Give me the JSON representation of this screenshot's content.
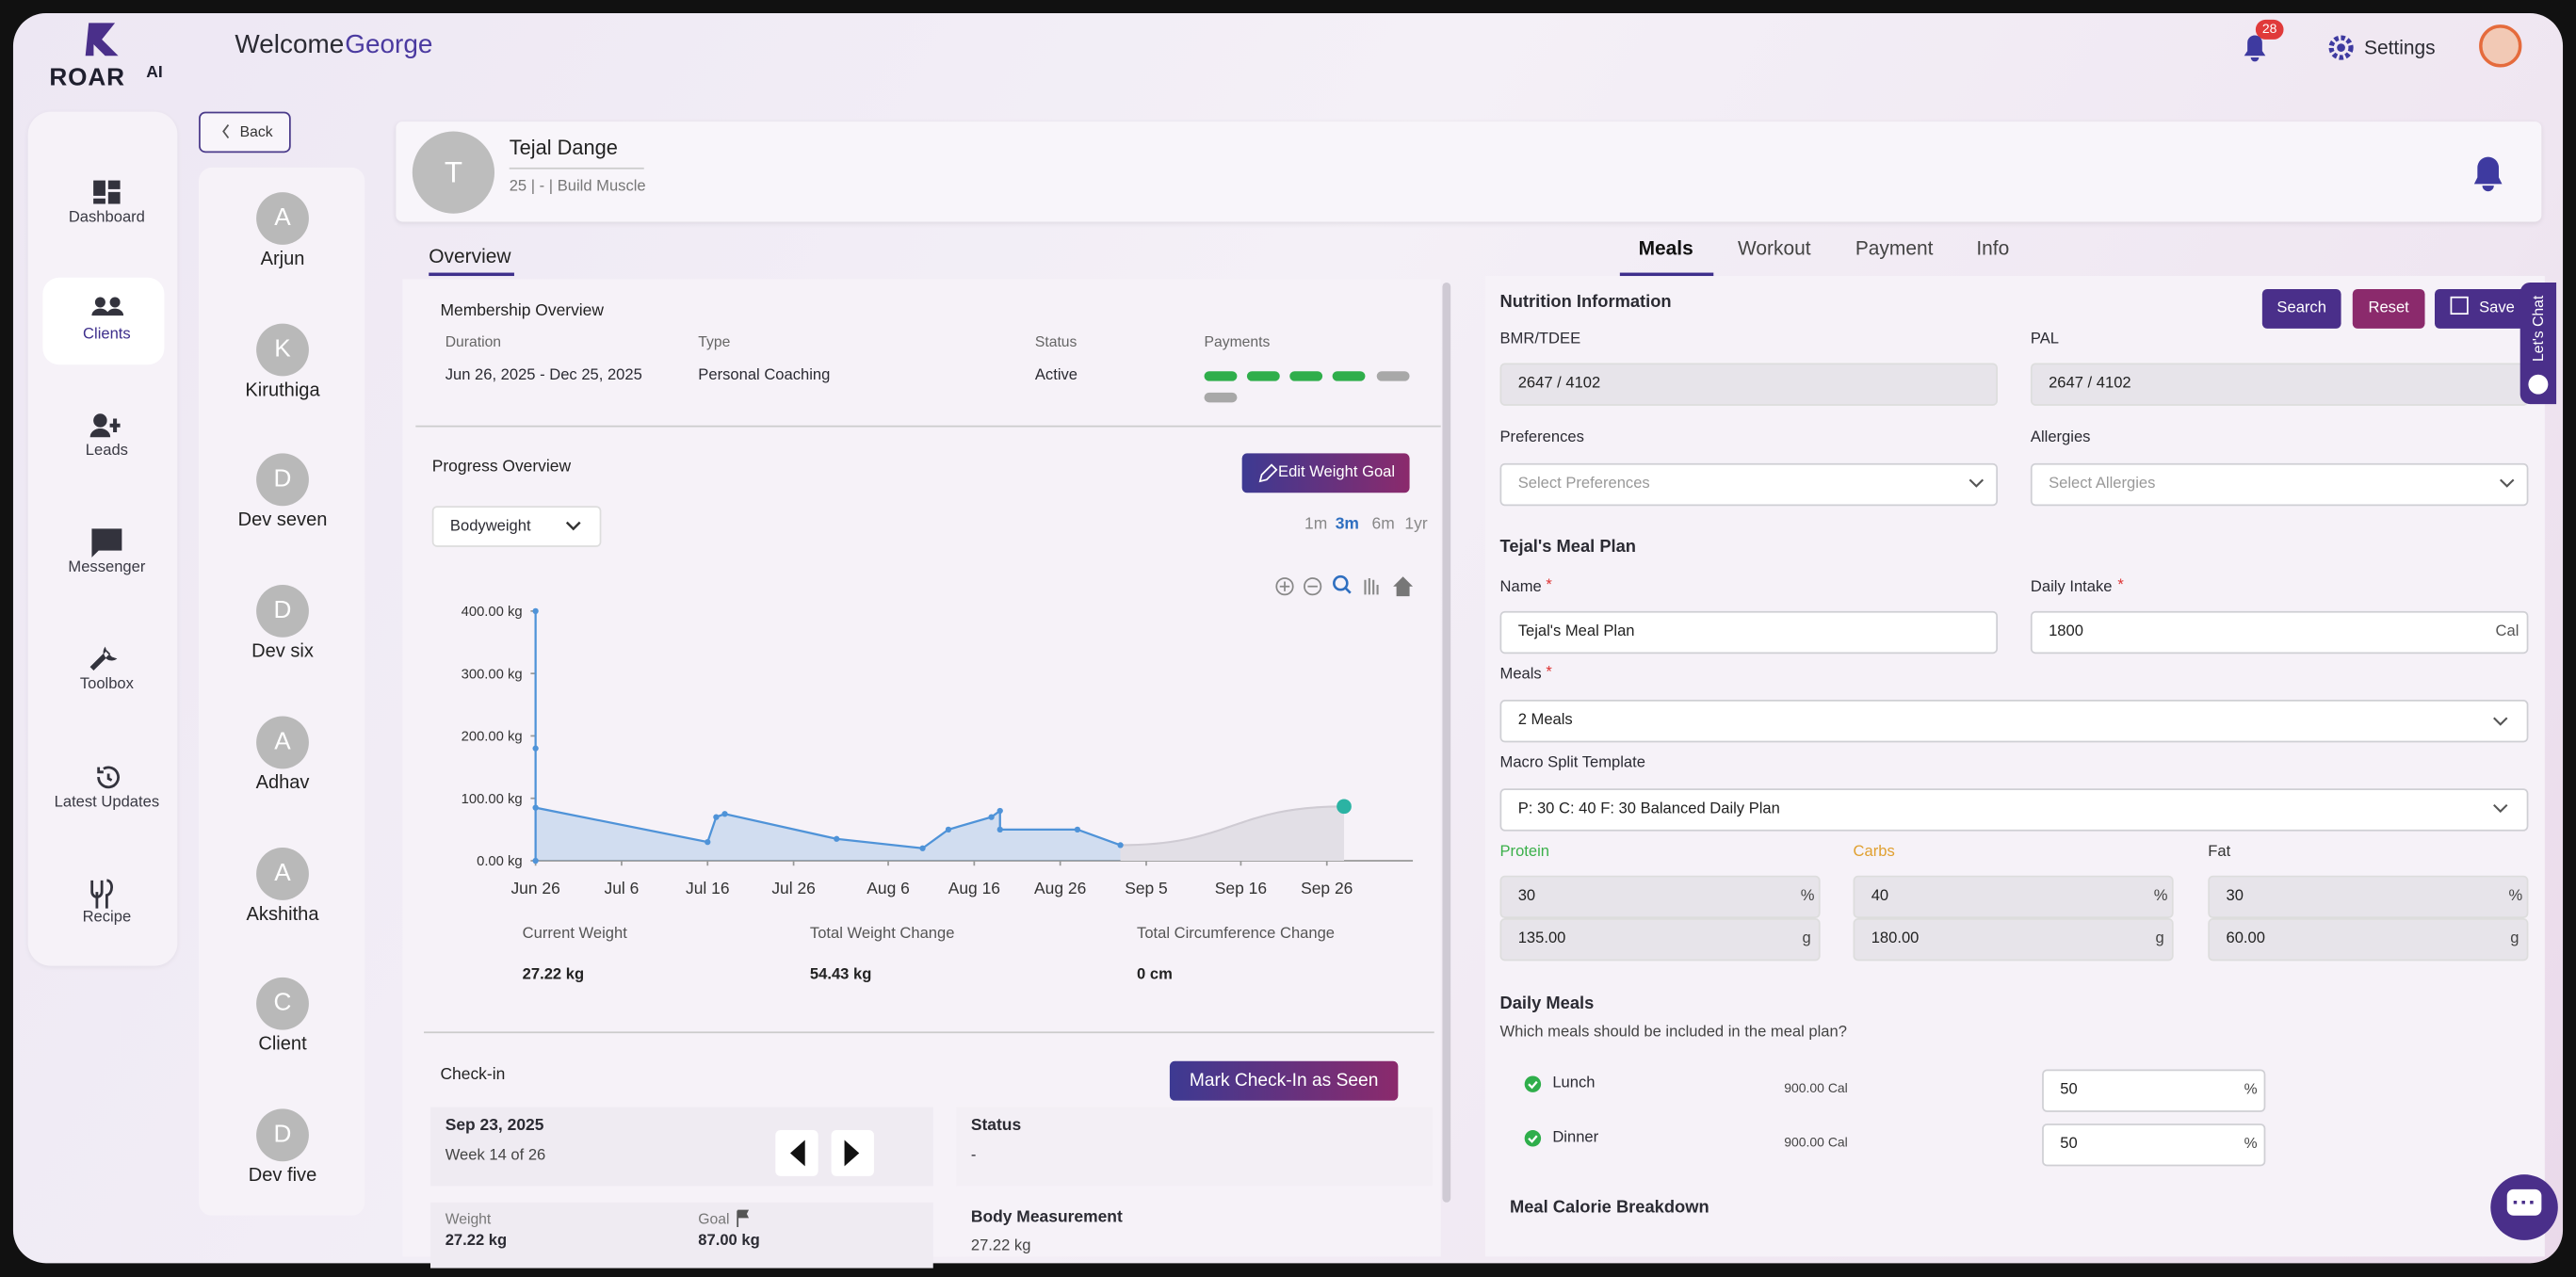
{
  "brand": {
    "name": "ROAR",
    "suffix": "AI"
  },
  "header": {
    "welcome": "Welcome",
    "user": "George",
    "notification_count": "28",
    "settings": "Settings"
  },
  "nav": [
    "Dashboard",
    "Clients",
    "Leads",
    "Messenger",
    "Toolbox",
    "Latest Updates",
    "Recipe"
  ],
  "active_nav": 1,
  "back": "Back",
  "clients": [
    {
      "initial": "A",
      "name": "Arjun"
    },
    {
      "initial": "K",
      "name": "Kiruthiga"
    },
    {
      "initial": "D",
      "name": "Dev seven"
    },
    {
      "initial": "D",
      "name": "Dev six"
    },
    {
      "initial": "A",
      "name": "Adhav"
    },
    {
      "initial": "A",
      "name": "Akshitha"
    },
    {
      "initial": "C",
      "name": "Client"
    },
    {
      "initial": "D",
      "name": "Dev five"
    }
  ],
  "profile": {
    "initial": "T",
    "name": "Tejal Dange",
    "details": "25 | - | Build Muscle"
  },
  "overview_tab": "Overview",
  "membership": {
    "title": "Membership Overview",
    "headers": [
      "Duration",
      "Type",
      "Status",
      "Payments"
    ],
    "duration": "Jun 26, 2025 - Dec 25, 2025",
    "type": "Personal Coaching",
    "status": "Active"
  },
  "progress": {
    "title": "Progress Overview",
    "edit_button": "Edit Weight Goal",
    "metric": "Bodyweight",
    "ranges": [
      "1m",
      "3m",
      "6m",
      "1yr"
    ],
    "selected_range": 1,
    "chart": {
      "type": "area",
      "x": [
        "Jun 26",
        "Jun 26",
        "Jun 26",
        "Jun 26",
        "Jul 16",
        "Jul 17",
        "Jul 18",
        "Jul 31",
        "Aug 10",
        "Aug 13",
        "Aug 18",
        "Aug 19",
        "Aug 19",
        "Aug 28",
        "Sep 2"
      ],
      "values": [
        0,
        400,
        180,
        85,
        30,
        70,
        75,
        35,
        20,
        50,
        70,
        80,
        50,
        50,
        25
      ],
      "goal": {
        "x": "Sep 28",
        "value": 87
      },
      "xlim": [
        "Jun 26",
        "Oct 6"
      ],
      "xticks": [
        "Jun 26",
        "Jul 6",
        "Jul 16",
        "Jul 26",
        "Aug 6",
        "Aug 16",
        "Aug 26",
        "Sep 5",
        "Sep 16",
        "Sep 26"
      ],
      "ylim": [
        0,
        400
      ],
      "yticks": [
        {
          "value": 0,
          "label": "0.00 kg"
        },
        {
          "value": 100,
          "label": "100.00 kg"
        },
        {
          "value": 200,
          "label": "200.00 kg"
        },
        {
          "value": 300,
          "label": "300.00 kg"
        },
        {
          "value": 400,
          "label": "400.00 kg"
        }
      ],
      "color": "#4f93d8",
      "goal_color": "#2bb3a3"
    },
    "stats": [
      {
        "label": "Current Weight",
        "value": "27.22 kg"
      },
      {
        "label": "Total Weight Change",
        "value": "54.43 kg"
      },
      {
        "label": "Total Circumference Change",
        "value": "0 cm"
      }
    ]
  },
  "checkin": {
    "title": "Check-in",
    "button": "Mark Check-In as Seen",
    "date": "Sep 23, 2025",
    "week": "Week 14 of 26",
    "status_label": "Status",
    "status": "-",
    "weight_label": "Weight",
    "weight": "27.22 kg",
    "goal_label": "Goal",
    "goal": "87.00 kg",
    "body_label": "Body Measurement",
    "body": "27.22 kg"
  },
  "tabs": [
    "Meals",
    "Workout",
    "Payment",
    "Info"
  ],
  "selected_tab": 0,
  "nutrition": {
    "title": "Nutrition Information",
    "buttons": [
      "Search",
      "Reset",
      "Save"
    ],
    "bmr_label": "BMR/TDEE",
    "bmr": "2647 / 4102",
    "pal_label": "PAL",
    "pal": "2647 / 4102",
    "preferences_label": "Preferences",
    "preferences_placeholder": "Select Preferences",
    "allergies_label": "Allergies",
    "allergies_placeholder": "Select Allergies",
    "plan_title": "Tejal's Meal Plan",
    "required": "*",
    "name_label": "Name",
    "name": "Tejal's Meal Plan",
    "intake_label": "Daily Intake",
    "intake": "1800",
    "intake_unit": "Cal",
    "meals_label": "Meals",
    "meals": "2 Meals",
    "template_label": "Macro Split Template",
    "template": "P: 30 C: 40 F: 30 Balanced Daily Plan",
    "macros": [
      {
        "name": "Protein",
        "percent": "30",
        "grams": "135.00",
        "color": "#3bb04a"
      },
      {
        "name": "Carbs",
        "percent": "40",
        "grams": "180.00",
        "color": "#e0a030"
      },
      {
        "name": "Fat",
        "percent": "30",
        "grams": "60.00",
        "color": "#333333"
      }
    ],
    "percent_unit": "%",
    "gram_unit": "g",
    "daily_meals_title": "Daily Meals",
    "daily_meals_question": "Which meals should be included in the meal plan?",
    "daily_meals": [
      {
        "name": "Lunch",
        "calories": "900.00 Cal",
        "share": "50"
      },
      {
        "name": "Dinner",
        "calories": "900.00 Cal",
        "share": "50"
      }
    ],
    "breakdown_title": "Meal Calorie Breakdown"
  },
  "chat": "Let's Chat"
}
